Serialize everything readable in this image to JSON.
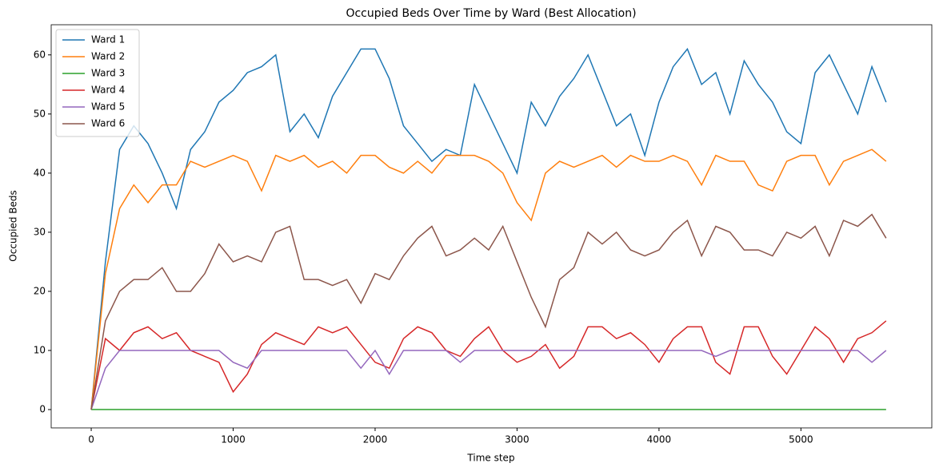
{
  "chart_data": {
    "type": "line",
    "title": "Occupied Beds Over Time by Ward (Best Allocation)",
    "xlabel": "Time step",
    "ylabel": "Occupied Beds",
    "x": [
      0,
      100,
      200,
      300,
      400,
      500,
      600,
      700,
      800,
      900,
      1000,
      1100,
      1200,
      1300,
      1400,
      1500,
      1600,
      1700,
      1800,
      1900,
      2000,
      2100,
      2200,
      2300,
      2400,
      2500,
      2600,
      2700,
      2800,
      2900,
      3000,
      3100,
      3200,
      3300,
      3400,
      3500,
      3600,
      3700,
      3800,
      3900,
      4000,
      4100,
      4200,
      4300,
      4400,
      4500,
      4600,
      4700,
      4800,
      4900,
      5000,
      5100,
      5200,
      5300,
      5400,
      5500,
      5600
    ],
    "series": [
      {
        "name": "Ward 1",
        "color": "#1f77b4",
        "values": [
          0,
          25,
          44,
          48,
          45,
          40,
          34,
          44,
          47,
          52,
          54,
          57,
          58,
          60,
          47,
          50,
          46,
          53,
          57,
          61,
          61,
          56,
          48,
          45,
          42,
          44,
          43,
          55,
          50,
          45,
          40,
          52,
          48,
          53,
          56,
          60,
          54,
          48,
          50,
          43,
          52,
          58,
          61,
          55,
          57,
          50,
          59,
          55,
          52,
          47,
          45,
          57,
          60,
          55,
          50,
          58,
          52
        ]
      },
      {
        "name": "Ward 2",
        "color": "#ff7f0e",
        "values": [
          0,
          23,
          34,
          38,
          35,
          38,
          38,
          42,
          41,
          42,
          43,
          42,
          37,
          43,
          42,
          43,
          41,
          42,
          40,
          43,
          43,
          41,
          40,
          42,
          40,
          43,
          43,
          43,
          42,
          40,
          35,
          32,
          40,
          42,
          41,
          42,
          43,
          41,
          43,
          42,
          42,
          43,
          42,
          38,
          43,
          42,
          42,
          38,
          37,
          42,
          43,
          43,
          38,
          42,
          43,
          44,
          42
        ]
      },
      {
        "name": "Ward 3",
        "color": "#2ca02c",
        "values": [
          0,
          0,
          0,
          0,
          0,
          0,
          0,
          0,
          0,
          0,
          0,
          0,
          0,
          0,
          0,
          0,
          0,
          0,
          0,
          0,
          0,
          0,
          0,
          0,
          0,
          0,
          0,
          0,
          0,
          0,
          0,
          0,
          0,
          0,
          0,
          0,
          0,
          0,
          0,
          0,
          0,
          0,
          0,
          0,
          0,
          0,
          0,
          0,
          0,
          0,
          0,
          0,
          0,
          0,
          0,
          0,
          0
        ]
      },
      {
        "name": "Ward 4",
        "color": "#d62728",
        "values": [
          0,
          12,
          10,
          13,
          14,
          12,
          13,
          10,
          9,
          8,
          3,
          6,
          11,
          13,
          12,
          11,
          14,
          13,
          14,
          11,
          8,
          7,
          12,
          14,
          13,
          10,
          9,
          12,
          14,
          10,
          8,
          9,
          11,
          7,
          9,
          14,
          14,
          12,
          13,
          11,
          8,
          12,
          14,
          14,
          8,
          6,
          14,
          14,
          9,
          6,
          10,
          14,
          12,
          8,
          12,
          13,
          15
        ]
      },
      {
        "name": "Ward 5",
        "color": "#9467bd",
        "values": [
          0,
          7,
          10,
          10,
          10,
          10,
          10,
          10,
          10,
          10,
          8,
          7,
          10,
          10,
          10,
          10,
          10,
          10,
          10,
          7,
          10,
          6,
          10,
          10,
          10,
          10,
          8,
          10,
          10,
          10,
          10,
          10,
          10,
          10,
          10,
          10,
          10,
          10,
          10,
          10,
          10,
          10,
          10,
          10,
          9,
          10,
          10,
          10,
          10,
          10,
          10,
          10,
          10,
          10,
          10,
          8,
          10
        ]
      },
      {
        "name": "Ward 6",
        "color": "#8c564b",
        "values": [
          0,
          15,
          20,
          22,
          22,
          24,
          20,
          20,
          23,
          28,
          25,
          26,
          25,
          30,
          31,
          22,
          22,
          21,
          22,
          18,
          23,
          22,
          26,
          29,
          31,
          26,
          27,
          29,
          27,
          31,
          25,
          19,
          14,
          22,
          24,
          30,
          28,
          30,
          27,
          26,
          27,
          30,
          32,
          26,
          31,
          30,
          27,
          27,
          26,
          30,
          29,
          31,
          26,
          32,
          31,
          33,
          29
        ]
      }
    ],
    "xlim": [
      -282,
      5922
    ],
    "ylim": [
      -3.1,
      65.1
    ],
    "xticks": [
      0,
      1000,
      2000,
      3000,
      4000,
      5000
    ],
    "yticks": [
      0,
      10,
      20,
      30,
      40,
      50,
      60
    ],
    "legend": "upper left"
  }
}
